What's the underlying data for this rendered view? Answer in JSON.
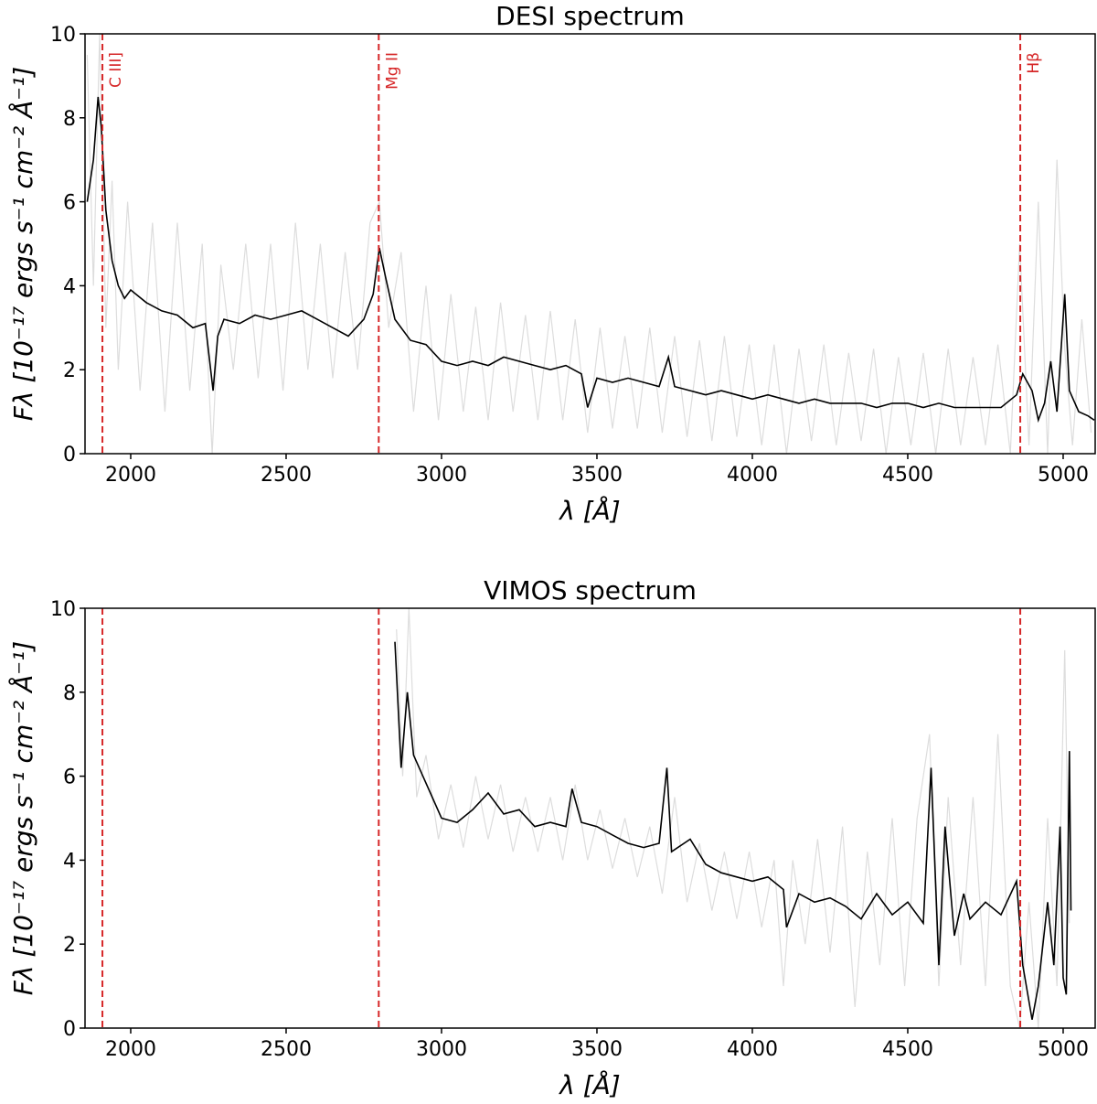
{
  "chart_data": [
    {
      "type": "line",
      "title": "DESI spectrum",
      "xlabel": "λ [Å]",
      "ylabel": "Fλ [10⁻¹⁷ ergs s⁻¹ cm⁻² Å⁻¹]",
      "xlim": [
        1853,
        5103
      ],
      "ylim": [
        0,
        10
      ],
      "xticks": [
        2000,
        2500,
        3000,
        3500,
        4000,
        4500,
        5000
      ],
      "yticks": [
        0,
        2,
        4,
        6,
        8,
        10
      ],
      "vlines": [
        {
          "x": 1909,
          "label": "C III]"
        },
        {
          "x": 2798,
          "label": "Mg II"
        },
        {
          "x": 4862,
          "label": "Hβ"
        }
      ],
      "vline_color": "#d62728",
      "series": [
        {
          "color": "#dddddd",
          "x": [
            1860,
            1880,
            1900,
            1920,
            1940,
            1960,
            1990,
            2030,
            2070,
            2110,
            2150,
            2190,
            2230,
            2262,
            2290,
            2330,
            2370,
            2410,
            2450,
            2490,
            2530,
            2570,
            2610,
            2650,
            2690,
            2730,
            2770,
            2800,
            2830,
            2870,
            2910,
            2950,
            2990,
            3030,
            3070,
            3110,
            3150,
            3190,
            3230,
            3270,
            3310,
            3350,
            3390,
            3430,
            3470,
            3510,
            3550,
            3590,
            3630,
            3670,
            3710,
            3750,
            3790,
            3830,
            3870,
            3910,
            3950,
            3990,
            4030,
            4070,
            4110,
            4150,
            4190,
            4230,
            4270,
            4310,
            4350,
            4390,
            4430,
            4470,
            4510,
            4550,
            4590,
            4630,
            4670,
            4710,
            4750,
            4790,
            4830,
            4860,
            4890,
            4920,
            4950,
            4980,
            5005,
            5030,
            5060,
            5090
          ],
          "values": [
            9.5,
            4.0,
            10,
            3.0,
            6.5,
            2.0,
            6.0,
            1.5,
            5.5,
            1.0,
            5.5,
            1.5,
            5.0,
            0.0,
            4.5,
            2.0,
            5.0,
            1.8,
            5.0,
            1.5,
            5.5,
            2.0,
            5.0,
            1.8,
            4.8,
            2.0,
            5.5,
            6.0,
            3.0,
            4.8,
            1.0,
            4.0,
            0.8,
            3.8,
            1.0,
            3.5,
            0.8,
            3.6,
            1.0,
            3.3,
            0.8,
            3.4,
            0.8,
            3.2,
            0.5,
            3.0,
            0.6,
            2.8,
            0.6,
            3.0,
            0.5,
            2.8,
            0.4,
            2.7,
            0.3,
            2.8,
            0.4,
            2.6,
            0.2,
            2.6,
            0.0,
            2.5,
            0.3,
            2.6,
            0.2,
            2.4,
            0.3,
            2.5,
            0.0,
            2.3,
            0.2,
            2.4,
            0.0,
            2.5,
            0.2,
            2.3,
            0.2,
            2.6,
            0.0,
            5.0,
            0.2,
            6.0,
            0.0,
            7.0,
            2.5,
            0.2,
            3.2,
            0.5
          ]
        },
        {
          "color": "#000000",
          "x": [
            1860,
            1880,
            1895,
            1905,
            1920,
            1940,
            1960,
            1980,
            2000,
            2050,
            2100,
            2150,
            2200,
            2240,
            2265,
            2280,
            2300,
            2350,
            2400,
            2450,
            2500,
            2550,
            2600,
            2650,
            2700,
            2750,
            2780,
            2800,
            2820,
            2850,
            2900,
            2950,
            3000,
            3050,
            3100,
            3150,
            3200,
            3250,
            3300,
            3350,
            3400,
            3450,
            3470,
            3500,
            3550,
            3600,
            3650,
            3700,
            3730,
            3750,
            3800,
            3850,
            3900,
            3950,
            4000,
            4050,
            4100,
            4150,
            4200,
            4250,
            4300,
            4350,
            4400,
            4450,
            4500,
            4550,
            4600,
            4650,
            4700,
            4750,
            4800,
            4850,
            4870,
            4900,
            4920,
            4940,
            4960,
            4980,
            5005,
            5020,
            5050,
            5080,
            5100
          ],
          "values": [
            6.0,
            7.0,
            8.5,
            7.8,
            5.8,
            4.6,
            4.0,
            3.7,
            3.9,
            3.6,
            3.4,
            3.3,
            3.0,
            3.1,
            1.5,
            2.8,
            3.2,
            3.1,
            3.3,
            3.2,
            3.3,
            3.4,
            3.2,
            3.0,
            2.8,
            3.2,
            3.8,
            4.9,
            4.2,
            3.2,
            2.7,
            2.6,
            2.2,
            2.1,
            2.2,
            2.1,
            2.3,
            2.2,
            2.1,
            2.0,
            2.1,
            1.9,
            1.1,
            1.8,
            1.7,
            1.8,
            1.7,
            1.6,
            2.3,
            1.6,
            1.5,
            1.4,
            1.5,
            1.4,
            1.3,
            1.4,
            1.3,
            1.2,
            1.3,
            1.2,
            1.2,
            1.2,
            1.1,
            1.2,
            1.2,
            1.1,
            1.2,
            1.1,
            1.1,
            1.1,
            1.1,
            1.4,
            1.9,
            1.5,
            0.8,
            1.2,
            2.2,
            1.0,
            3.8,
            1.5,
            1.0,
            0.9,
            0.8
          ]
        }
      ]
    },
    {
      "type": "line",
      "title": "VIMOS spectrum",
      "xlabel": "λ [Å]",
      "ylabel": "Fλ [10⁻¹⁷ ergs s⁻¹ cm⁻² Å⁻¹]",
      "xlim": [
        1853,
        5103
      ],
      "ylim": [
        0,
        10
      ],
      "xticks": [
        2000,
        2500,
        3000,
        3500,
        4000,
        4500,
        5000
      ],
      "yticks": [
        0,
        2,
        4,
        6,
        8,
        10
      ],
      "vlines": [
        {
          "x": 1909
        },
        {
          "x": 2798
        },
        {
          "x": 4862
        }
      ],
      "vline_color": "#d62728",
      "series": [
        {
          "color": "#dddddd",
          "x": [
            2855,
            2875,
            2895,
            2920,
            2950,
            2990,
            3030,
            3070,
            3110,
            3150,
            3190,
            3230,
            3270,
            3310,
            3350,
            3390,
            3430,
            3470,
            3510,
            3550,
            3590,
            3630,
            3670,
            3710,
            3750,
            3790,
            3830,
            3870,
            3910,
            3950,
            3990,
            4030,
            4070,
            4100,
            4130,
            4170,
            4210,
            4250,
            4290,
            4330,
            4370,
            4410,
            4450,
            4490,
            4530,
            4570,
            4600,
            4630,
            4670,
            4710,
            4750,
            4790,
            4830,
            4860,
            4890,
            4920,
            4950,
            4980,
            5005,
            5020
          ],
          "values": [
            9.5,
            6.0,
            10,
            5.5,
            6.5,
            4.5,
            5.8,
            4.3,
            6.0,
            4.5,
            5.8,
            4.2,
            5.5,
            4.2,
            5.5,
            4.0,
            5.8,
            4.0,
            5.2,
            3.8,
            5.0,
            3.6,
            4.8,
            3.2,
            5.5,
            3.0,
            4.4,
            2.8,
            4.2,
            2.6,
            4.2,
            2.4,
            4.0,
            1.0,
            4.0,
            2.0,
            4.5,
            1.8,
            4.8,
            0.5,
            4.2,
            1.5,
            5.0,
            1.0,
            5.0,
            7.0,
            1.0,
            5.5,
            1.5,
            5.5,
            1.0,
            7.0,
            1.0,
            0.0,
            3.0,
            0.0,
            5.0,
            1.0,
            9.0,
            2.5
          ]
        },
        {
          "color": "#000000",
          "x": [
            2850,
            2870,
            2890,
            2910,
            2940,
            2970,
            3000,
            3050,
            3100,
            3150,
            3200,
            3250,
            3300,
            3350,
            3400,
            3420,
            3450,
            3500,
            3550,
            3600,
            3650,
            3700,
            3725,
            3740,
            3800,
            3850,
            3900,
            3950,
            4000,
            4050,
            4100,
            4110,
            4150,
            4200,
            4250,
            4300,
            4350,
            4400,
            4450,
            4500,
            4550,
            4575,
            4600,
            4620,
            4650,
            4680,
            4700,
            4750,
            4800,
            4850,
            4870,
            4900,
            4920,
            4950,
            4970,
            4990,
            5000,
            5010,
            5020,
            5025
          ],
          "values": [
            9.2,
            6.2,
            8.0,
            6.5,
            6.0,
            5.5,
            5.0,
            4.9,
            5.2,
            5.6,
            5.1,
            5.2,
            4.8,
            4.9,
            4.8,
            5.7,
            4.9,
            4.8,
            4.6,
            4.4,
            4.3,
            4.4,
            6.2,
            4.2,
            4.5,
            3.9,
            3.7,
            3.6,
            3.5,
            3.6,
            3.3,
            2.4,
            3.2,
            3.0,
            3.1,
            2.9,
            2.6,
            3.2,
            2.7,
            3.0,
            2.5,
            6.2,
            1.5,
            4.8,
            2.2,
            3.2,
            2.6,
            3.0,
            2.7,
            3.5,
            1.5,
            0.2,
            1.0,
            3.0,
            1.5,
            4.8,
            1.2,
            0.8,
            6.6,
            2.8
          ]
        }
      ]
    }
  ]
}
